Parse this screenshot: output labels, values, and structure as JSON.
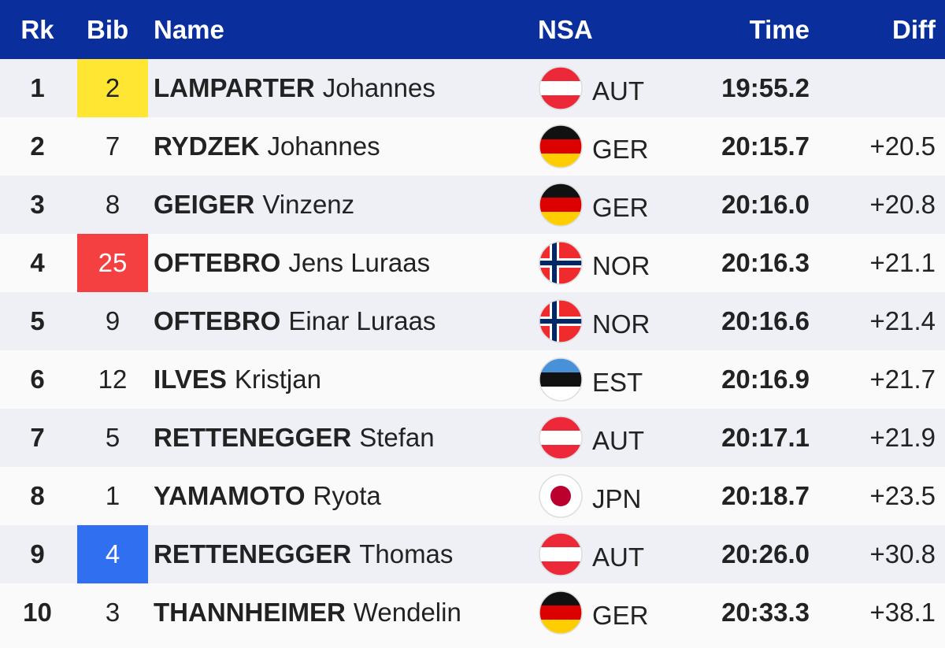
{
  "header": {
    "rk": "Rk",
    "bib": "Bib",
    "name": "Name",
    "nsa": "NSA",
    "time": "Time",
    "diff": "Diff"
  },
  "colors": {
    "header": "#0a2e9c",
    "bib_yellow": "#ffe633",
    "bib_red": "#f44040",
    "bib_blue": "#2f6ff0"
  },
  "rows": [
    {
      "rk": "1",
      "bib": "2",
      "bib_color": "#ffe633",
      "last": "LAMPARTER",
      "first": "Johannes",
      "nsa": "AUT",
      "time": "19:55.2",
      "diff": ""
    },
    {
      "rk": "2",
      "bib": "7",
      "bib_color": "",
      "last": "RYDZEK",
      "first": "Johannes",
      "nsa": "GER",
      "time": "20:15.7",
      "diff": "+20.5"
    },
    {
      "rk": "3",
      "bib": "8",
      "bib_color": "",
      "last": "GEIGER",
      "first": "Vinzenz",
      "nsa": "GER",
      "time": "20:16.0",
      "diff": "+20.8"
    },
    {
      "rk": "4",
      "bib": "25",
      "bib_color": "#f44040",
      "last": "OFTEBRO",
      "first": "Jens Luraas",
      "nsa": "NOR",
      "time": "20:16.3",
      "diff": "+21.1"
    },
    {
      "rk": "5",
      "bib": "9",
      "bib_color": "",
      "last": "OFTEBRO",
      "first": "Einar Luraas",
      "nsa": "NOR",
      "time": "20:16.6",
      "diff": "+21.4"
    },
    {
      "rk": "6",
      "bib": "12",
      "bib_color": "",
      "last": "ILVES",
      "first": "Kristjan",
      "nsa": "EST",
      "time": "20:16.9",
      "diff": "+21.7"
    },
    {
      "rk": "7",
      "bib": "5",
      "bib_color": "",
      "last": "RETTENEGGER",
      "first": "Stefan",
      "nsa": "AUT",
      "time": "20:17.1",
      "diff": "+21.9"
    },
    {
      "rk": "8",
      "bib": "1",
      "bib_color": "",
      "last": "YAMAMOTO",
      "first": "Ryota",
      "nsa": "JPN",
      "time": "20:18.7",
      "diff": "+23.5"
    },
    {
      "rk": "9",
      "bib": "4",
      "bib_color": "#2f6ff0",
      "last": "RETTENEGGER",
      "first": "Thomas",
      "nsa": "AUT",
      "time": "20:26.0",
      "diff": "+30.8"
    },
    {
      "rk": "10",
      "bib": "3",
      "bib_color": "",
      "last": "THANNHEIMER",
      "first": "Wendelin",
      "nsa": "GER",
      "time": "20:33.3",
      "diff": "+38.1"
    }
  ]
}
